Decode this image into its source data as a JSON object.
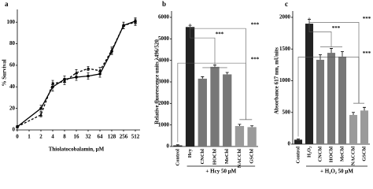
{
  "chart_data": [
    {
      "label": "a",
      "type": "line",
      "x": [
        0,
        2,
        4,
        8,
        16,
        32,
        64,
        128,
        256,
        512
      ],
      "xscale": "log2",
      "xlim": [
        0,
        512
      ],
      "xticks": [
        0,
        1,
        2,
        4,
        8,
        16,
        32,
        64,
        128,
        256,
        512
      ],
      "ylim": [
        0,
        106
      ],
      "yticks": [
        0,
        20,
        40,
        60,
        80,
        100
      ],
      "xlabel": "Thiolatocobalamin, μM",
      "ylabel": "% Survival",
      "series": [
        {
          "color": "#000000",
          "dash": false,
          "marker": "circle",
          "values": [
            3,
            20,
            40,
            47,
            49,
            50,
            52,
            73,
            97,
            101
          ],
          "errors": [
            1,
            3,
            4,
            3,
            3,
            3,
            3,
            3,
            3,
            3
          ]
        },
        {
          "color": "#000000",
          "dash": true,
          "marker": "triangle",
          "values": [
            3,
            14,
            43,
            45,
            53,
            57,
            55,
            74,
            97,
            100
          ],
          "errors": [
            1,
            2,
            3,
            3,
            3,
            2,
            3,
            3,
            3,
            3
          ]
        }
      ]
    },
    {
      "label": "b",
      "type": "bar",
      "categories": [
        "Control",
        "Hcy",
        "CNCbl",
        "HOCbl",
        "MeCbl",
        "NACCbl",
        "GSCbl"
      ],
      "values": [
        50,
        5550,
        3150,
        3700,
        3350,
        950,
        900
      ],
      "errors": [
        30,
        80,
        90,
        80,
        90,
        80,
        60
      ],
      "colors": [
        "#222222",
        "#222222",
        "#777777",
        "#777777",
        "#777777",
        "#9a9a9a",
        "#9a9a9a"
      ],
      "ylim": [
        0,
        6000
      ],
      "yticks": [
        0,
        1000,
        2000,
        3000,
        4000,
        5000,
        6000
      ],
      "ylabel": "Relative fluorescence units λ496/520",
      "group_label": "+ Hcy 50 μM",
      "significance": [
        "***",
        "***",
        "***"
      ]
    },
    {
      "label": "c",
      "type": "bar",
      "categories": [
        "Control",
        "H₂O₂",
        "CNCbl",
        "HOCbl",
        "MeCbl",
        "NACCbl",
        "GSCbl"
      ],
      "values": [
        70,
        1900,
        1330,
        1440,
        1380,
        460,
        530
      ],
      "errors": [
        10,
        70,
        80,
        70,
        80,
        40,
        50
      ],
      "colors": [
        "#222222",
        "#222222",
        "#777777",
        "#777777",
        "#777777",
        "#9a9a9a",
        "#9a9a9a"
      ],
      "ylim": [
        0,
        2000
      ],
      "yticks": [
        0,
        500,
        1000,
        1500,
        2000
      ],
      "ylabel": "Absorbance 617 nm, mUnits",
      "group_label": "+ H₂O₂ 50 μM",
      "significance": [
        "***",
        "***",
        "***"
      ]
    }
  ]
}
